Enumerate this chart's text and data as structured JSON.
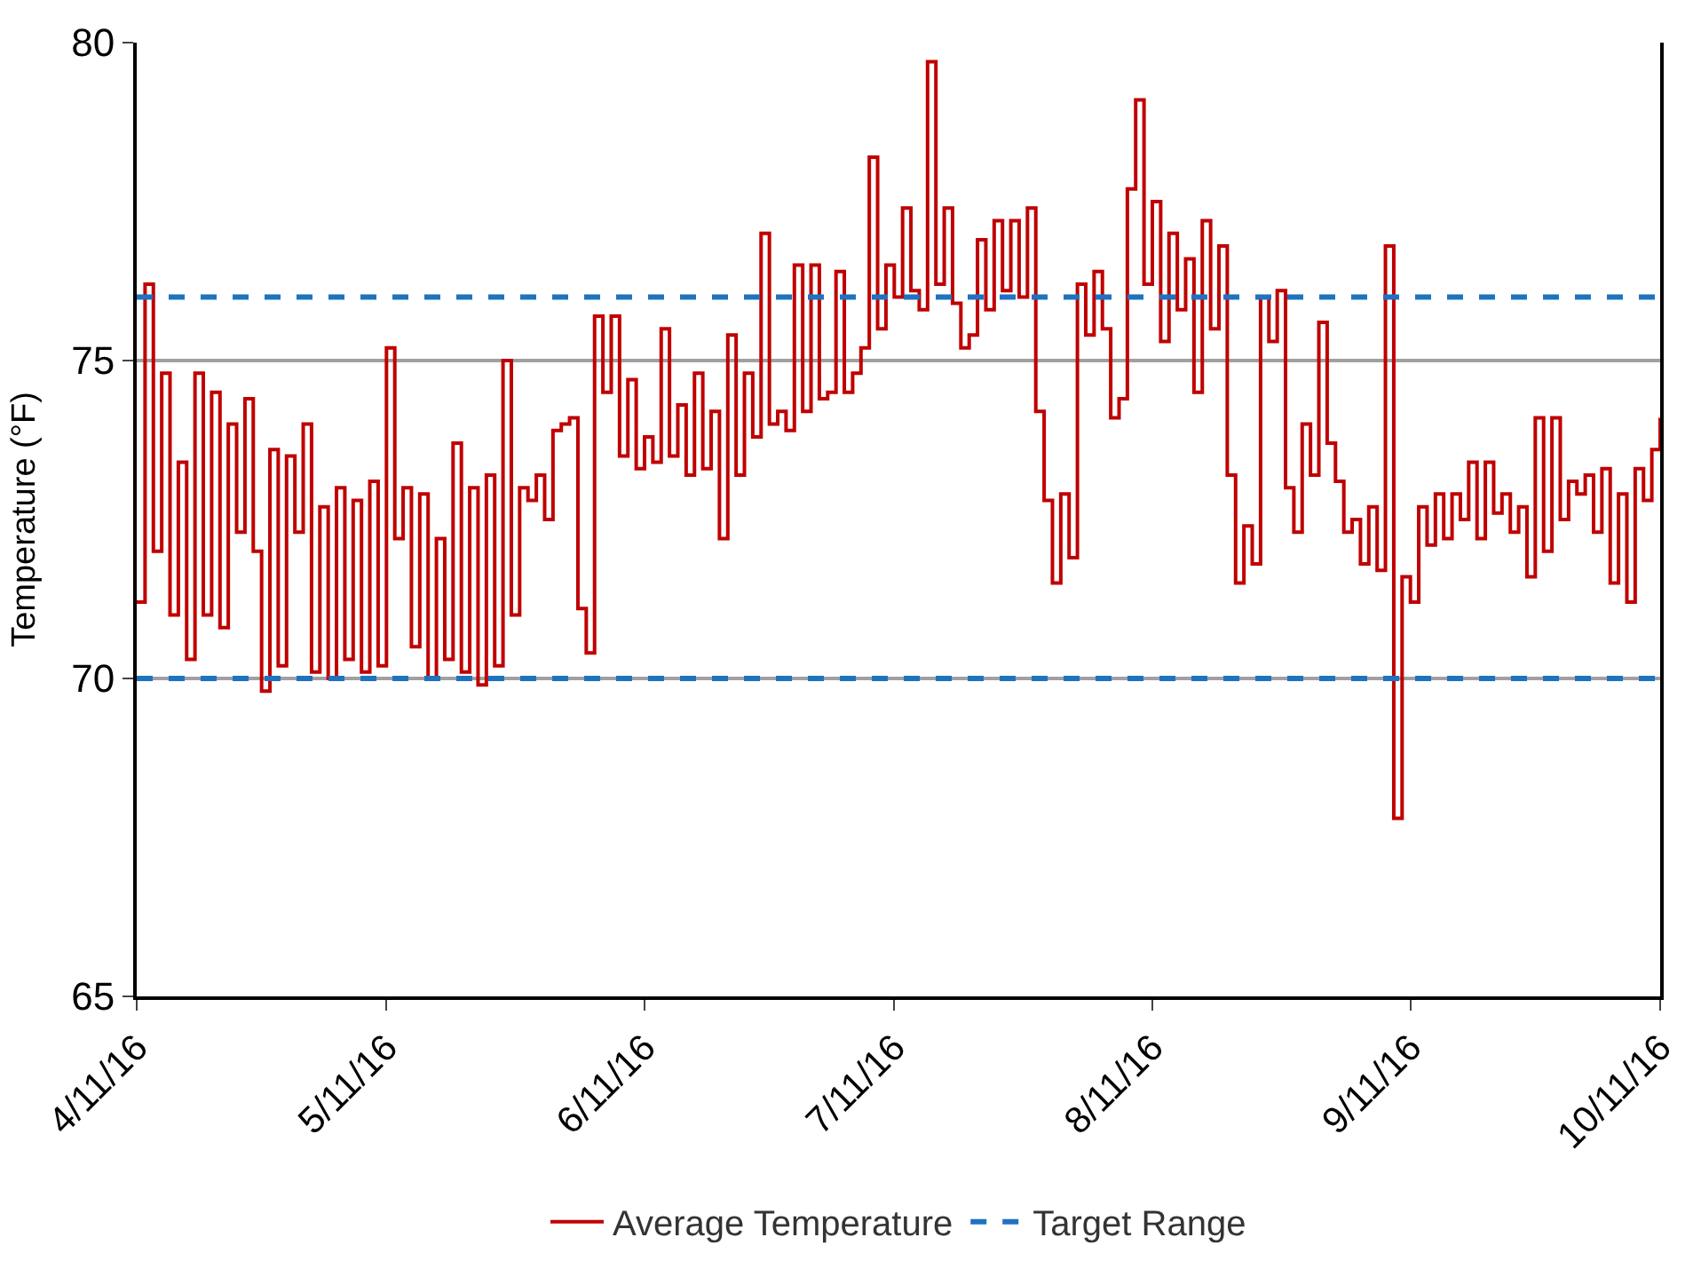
{
  "chart_data": {
    "type": "step",
    "ylabel": "Temperature (°F)",
    "xlim": [
      "2016-04-11",
      "2016-10-11"
    ],
    "xticks": [
      {
        "value": "2016-04-11",
        "label": "4/11/16"
      },
      {
        "value": "2016-05-11",
        "label": "5/11/16"
      },
      {
        "value": "2016-06-11",
        "label": "6/11/16"
      },
      {
        "value": "2016-07-11",
        "label": "7/11/16"
      },
      {
        "value": "2016-08-11",
        "label": "8/11/16"
      },
      {
        "value": "2016-09-11",
        "label": "9/11/16"
      },
      {
        "value": "2016-10-11",
        "label": "10/11/16"
      }
    ],
    "ylim": [
      65,
      80
    ],
    "yticks": [
      65,
      70,
      75,
      80
    ],
    "grid": "y",
    "legend": "bottom",
    "marker": "none",
    "line_style": "solid",
    "x": [
      "2016-04-11",
      "2016-04-12",
      "2016-04-13",
      "2016-04-14",
      "2016-04-15",
      "2016-04-16",
      "2016-04-17",
      "2016-04-18",
      "2016-04-19",
      "2016-04-20",
      "2016-04-21",
      "2016-04-22",
      "2016-04-23",
      "2016-04-24",
      "2016-04-25",
      "2016-04-26",
      "2016-04-27",
      "2016-04-28",
      "2016-04-29",
      "2016-04-30",
      "2016-05-01",
      "2016-05-02",
      "2016-05-03",
      "2016-05-04",
      "2016-05-05",
      "2016-05-06",
      "2016-05-07",
      "2016-05-08",
      "2016-05-09",
      "2016-05-10",
      "2016-05-11",
      "2016-05-12",
      "2016-05-13",
      "2016-05-14",
      "2016-05-15",
      "2016-05-16",
      "2016-05-17",
      "2016-05-18",
      "2016-05-19",
      "2016-05-20",
      "2016-05-21",
      "2016-05-22",
      "2016-05-23",
      "2016-05-24",
      "2016-05-25",
      "2016-05-26",
      "2016-05-27",
      "2016-05-28",
      "2016-05-29",
      "2016-05-30",
      "2016-05-31",
      "2016-06-01",
      "2016-06-02",
      "2016-06-03",
      "2016-06-04",
      "2016-06-05",
      "2016-06-06",
      "2016-06-07",
      "2016-06-08",
      "2016-06-09",
      "2016-06-10",
      "2016-06-11",
      "2016-06-12",
      "2016-06-13",
      "2016-06-14",
      "2016-06-15",
      "2016-06-16",
      "2016-06-17",
      "2016-06-18",
      "2016-06-19",
      "2016-06-20",
      "2016-06-21",
      "2016-06-22",
      "2016-06-23",
      "2016-06-24",
      "2016-06-25",
      "2016-06-26",
      "2016-06-27",
      "2016-06-28",
      "2016-06-29",
      "2016-06-30",
      "2016-07-01",
      "2016-07-02",
      "2016-07-03",
      "2016-07-04",
      "2016-07-05",
      "2016-07-06",
      "2016-07-07",
      "2016-07-08",
      "2016-07-09",
      "2016-07-10",
      "2016-07-11",
      "2016-07-12",
      "2016-07-13",
      "2016-07-14",
      "2016-07-15",
      "2016-07-16",
      "2016-07-17",
      "2016-07-18",
      "2016-07-19",
      "2016-07-20",
      "2016-07-21",
      "2016-07-22",
      "2016-07-23",
      "2016-07-24",
      "2016-07-25",
      "2016-07-26",
      "2016-07-27",
      "2016-07-28",
      "2016-07-29",
      "2016-07-30",
      "2016-07-31",
      "2016-08-01",
      "2016-08-02",
      "2016-08-03",
      "2016-08-04",
      "2016-08-05",
      "2016-08-06",
      "2016-08-07",
      "2016-08-08",
      "2016-08-09",
      "2016-08-10",
      "2016-08-11",
      "2016-08-12",
      "2016-08-13",
      "2016-08-14",
      "2016-08-15",
      "2016-08-16",
      "2016-08-17",
      "2016-08-18",
      "2016-08-19",
      "2016-08-20",
      "2016-08-21",
      "2016-08-22",
      "2016-08-23",
      "2016-08-24",
      "2016-08-25",
      "2016-08-26",
      "2016-08-27",
      "2016-08-28",
      "2016-08-29",
      "2016-08-30",
      "2016-08-31",
      "2016-09-01",
      "2016-09-02",
      "2016-09-03",
      "2016-09-04",
      "2016-09-05",
      "2016-09-06",
      "2016-09-07",
      "2016-09-08",
      "2016-09-09",
      "2016-09-10",
      "2016-09-11",
      "2016-09-12",
      "2016-09-13",
      "2016-09-14",
      "2016-09-15",
      "2016-09-16",
      "2016-09-17",
      "2016-09-18",
      "2016-09-19",
      "2016-09-20",
      "2016-09-21",
      "2016-09-22",
      "2016-09-23",
      "2016-09-24",
      "2016-09-25",
      "2016-09-26",
      "2016-09-27",
      "2016-09-28",
      "2016-09-29",
      "2016-09-30",
      "2016-10-01",
      "2016-10-02",
      "2016-10-03",
      "2016-10-04",
      "2016-10-05",
      "2016-10-06",
      "2016-10-07",
      "2016-10-08",
      "2016-10-09",
      "2016-10-10",
      "2016-10-11"
    ],
    "series": [
      {
        "name": "Average Temperature",
        "color": "#c00000",
        "values": [
          71.2,
          76.2,
          72.0,
          74.8,
          71.0,
          73.4,
          70.3,
          74.8,
          71.0,
          74.5,
          70.8,
          74.0,
          72.3,
          74.4,
          72.0,
          69.8,
          73.6,
          70.2,
          73.5,
          72.3,
          74.0,
          70.1,
          72.7,
          70.0,
          73.0,
          70.3,
          72.8,
          70.1,
          73.1,
          70.2,
          75.2,
          72.2,
          73.0,
          70.5,
          72.9,
          70.0,
          72.2,
          70.3,
          73.7,
          70.1,
          73.0,
          69.9,
          73.2,
          70.2,
          75.0,
          71.0,
          73.0,
          72.8,
          73.2,
          72.5,
          73.9,
          74.0,
          74.1,
          71.1,
          70.4,
          75.7,
          74.5,
          75.7,
          73.5,
          74.7,
          73.3,
          73.8,
          73.4,
          75.5,
          73.5,
          74.3,
          73.2,
          74.8,
          73.3,
          74.2,
          72.2,
          75.4,
          73.2,
          74.8,
          73.8,
          77.0,
          74.0,
          74.2,
          73.9,
          76.5,
          74.2,
          76.5,
          74.4,
          74.5,
          76.4,
          74.5,
          74.8,
          75.2,
          78.2,
          75.5,
          76.5,
          76.0,
          77.4,
          76.1,
          75.8,
          79.7,
          76.2,
          77.4,
          75.9,
          75.2,
          75.4,
          76.9,
          75.8,
          77.2,
          76.1,
          77.2,
          76.0,
          77.4,
          74.2,
          72.8,
          71.5,
          72.9,
          71.9,
          76.2,
          75.4,
          76.4,
          75.5,
          74.1,
          74.4,
          77.7,
          79.1,
          76.2,
          77.5,
          75.3,
          77.0,
          75.8,
          76.6,
          74.5,
          77.2,
          75.5,
          76.8,
          73.2,
          71.5,
          72.4,
          71.8,
          76.0,
          75.3,
          76.1,
          73.0,
          72.3,
          74.0,
          73.2,
          75.6,
          73.7,
          73.1,
          72.3,
          72.5,
          71.8,
          72.7,
          71.7,
          76.8,
          67.8,
          71.6,
          71.2,
          72.7,
          72.1,
          72.9,
          72.2,
          72.9,
          72.5,
          73.4,
          72.2,
          73.4,
          72.6,
          72.9,
          72.3,
          72.7,
          71.6,
          74.1,
          72.0,
          74.1,
          72.5,
          73.1,
          72.9,
          73.2,
          72.3,
          73.3,
          71.5,
          72.9,
          71.2,
          73.3,
          72.8,
          73.6,
          74.1
        ]
      }
    ],
    "ref_lines": [
      {
        "axis": "y",
        "value": 76,
        "label": "Target Range",
        "color": "#1f72c0",
        "line_style": "dashed"
      },
      {
        "axis": "y",
        "value": 70,
        "label": null,
        "color": "#1f72c0",
        "line_style": "dashed"
      }
    ]
  }
}
